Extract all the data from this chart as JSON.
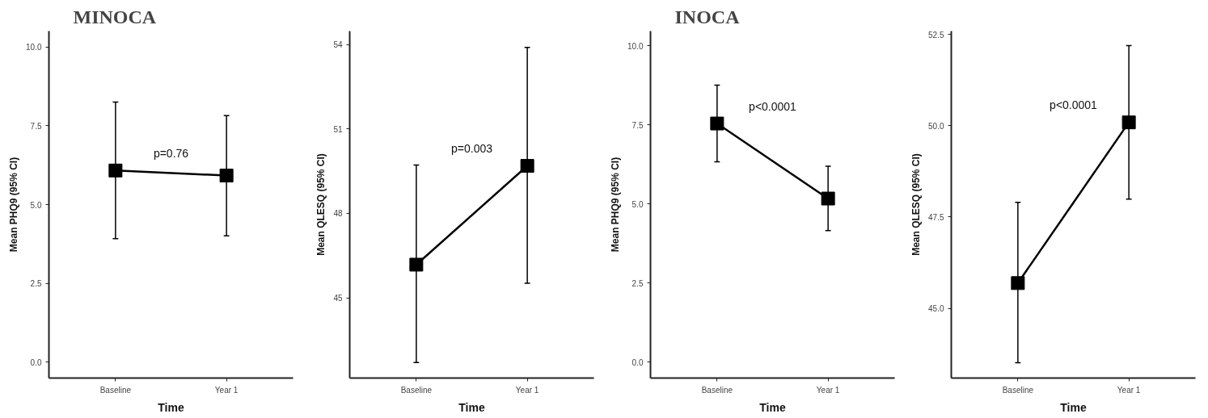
{
  "chart_data": [
    {
      "type": "line",
      "title": "MINOCA",
      "xlabel": "Time",
      "ylabel": "Mean PHQ9 (95% CI)",
      "categories": [
        "Baseline",
        "Year 1"
      ],
      "series": [
        {
          "color": "#000000",
          "values": [
            6.08,
            5.92
          ],
          "errors": [
            [
              3.92,
              8.25
            ],
            [
              4.01,
              7.82
            ]
          ]
        }
      ],
      "ylim": [
        -0.5,
        10.5
      ],
      "yticks": [
        {
          "value": 0,
          "label": "0.0"
        },
        {
          "value": 2.5,
          "label": "2.5"
        },
        {
          "value": 5,
          "label": "5.0"
        },
        {
          "value": 7.5,
          "label": "7.5"
        },
        {
          "value": 10,
          "label": "10.0"
        }
      ],
      "annotations": [
        "p=0.76"
      ],
      "marker": "square",
      "line_style": "solid",
      "grid": false
    },
    {
      "type": "line",
      "xlabel": "Time",
      "ylabel": "Mean QLESQ (95% CI)",
      "categories": [
        "Baseline",
        "Year 1"
      ],
      "series": [
        {
          "color": "#000000",
          "values": [
            46.18,
            49.69
          ],
          "errors": [
            [
              42.7,
              49.72
            ],
            [
              45.52,
              53.9
            ]
          ]
        }
      ],
      "ylim": [
        42.15,
        54.48
      ],
      "yticks": [
        45,
        48,
        51,
        54
      ],
      "annotations": [
        "p=0.003"
      ],
      "marker": "square",
      "line_style": "solid",
      "grid": false
    },
    {
      "type": "line",
      "title": "INOCA",
      "xlabel": "Time",
      "ylabel": "Mean PHQ9 (95% CI)",
      "categories": [
        "Baseline",
        "Year 1"
      ],
      "series": [
        {
          "color": "#000000",
          "values": [
            7.54,
            5.17
          ],
          "errors": [
            [
              6.33,
              8.75
            ],
            [
              4.16,
              6.19
            ]
          ]
        }
      ],
      "ylim": [
        -0.5,
        10.46
      ],
      "yticks": [
        {
          "value": 0,
          "label": "0.0"
        },
        {
          "value": 2.5,
          "label": "2.5"
        },
        {
          "value": 5,
          "label": "5.0"
        },
        {
          "value": 7.5,
          "label": "7.5"
        },
        {
          "value": 10,
          "label": "10.0"
        }
      ],
      "annotations": [
        "p<0.0001"
      ],
      "marker": "square",
      "line_style": "solid",
      "grid": false
    },
    {
      "type": "line",
      "xlabel": "Time",
      "ylabel": "Mean QLESQ (95% CI)",
      "categories": [
        "Baseline",
        "Year 1"
      ],
      "series": [
        {
          "color": "#000000",
          "values": [
            45.69,
            50.09
          ],
          "errors": [
            [
              43.51,
              47.9
            ],
            [
              47.99,
              52.19
            ]
          ]
        }
      ],
      "ylim": [
        43.09,
        52.59
      ],
      "yticks": [
        {
          "value": 45,
          "label": "45.0"
        },
        {
          "value": 47.5,
          "label": "47.5"
        },
        {
          "value": 50,
          "label": "50.0"
        },
        {
          "value": 52.5,
          "label": "52.5"
        }
      ],
      "annotations": [
        "p<0.0001"
      ],
      "marker": "square",
      "line_style": "solid",
      "grid": false
    }
  ]
}
